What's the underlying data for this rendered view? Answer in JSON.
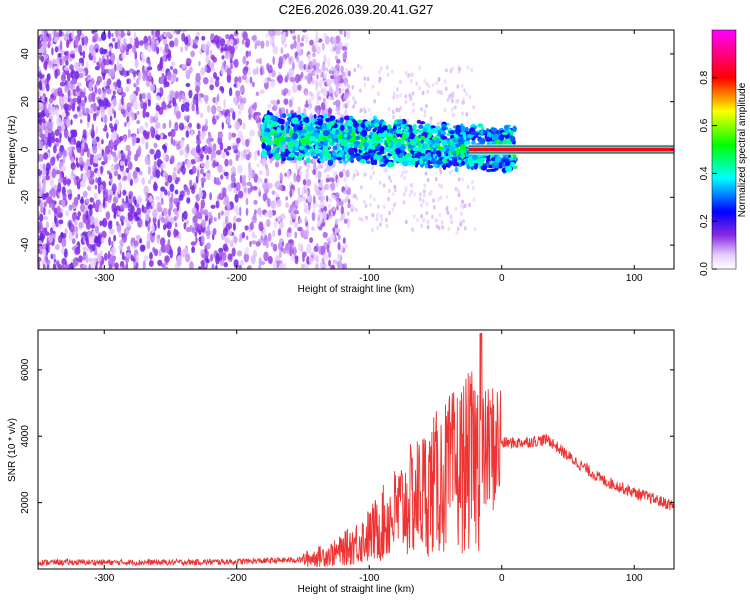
{
  "title": "C2E6.2026.039.20.41.G27",
  "chart_data": [
    {
      "type": "heatmap",
      "xlabel": "Height of straight line (km)",
      "ylabel": "Frequency (Hz)",
      "xlim": [
        -350,
        130
      ],
      "ylim": [
        -50,
        50
      ],
      "xticks": [
        -300,
        -200,
        -100,
        0,
        100
      ],
      "yticks": [
        -40,
        -20,
        0,
        20,
        40
      ],
      "colorbar": {
        "label": "Normalized spectral amplitude",
        "ticks": [
          "0.0",
          "0.2",
          "0.4",
          "0.6",
          "0.8"
        ],
        "range": [
          0,
          1
        ],
        "colors": [
          "#ffffff",
          "#e6ccff",
          "#8a2be2",
          "#0000ff",
          "#00ffff",
          "#00ff00",
          "#ffff00",
          "#ff0000",
          "#ff00ff"
        ]
      },
      "features": [
        {
          "name": "noise band",
          "x_range": [
            -350,
            -130
          ],
          "freq_range": [
            -50,
            50
          ],
          "amplitude": 0.15
        },
        {
          "name": "signal band",
          "x_range": [
            -180,
            10
          ],
          "freq_range": [
            -12,
            12
          ],
          "amplitude": 0.35
        },
        {
          "name": "carrier line",
          "x_range": [
            -25,
            130
          ],
          "freq": 0,
          "amplitude": 0.95
        }
      ]
    },
    {
      "type": "line",
      "xlabel": "Height of straight line (km)",
      "ylabel": "SNR (10 * v/v)",
      "xlim": [
        -350,
        130
      ],
      "ylim": [
        0,
        7200
      ],
      "xticks": [
        -300,
        -200,
        -100,
        0,
        100
      ],
      "yticks": [
        2000,
        4000,
        6000
      ],
      "color": "#ee3333",
      "x": [
        -350,
        -300,
        -250,
        -200,
        -175,
        -150,
        -125,
        -100,
        -80,
        -60,
        -45,
        -30,
        -20,
        -15,
        -10,
        -5,
        0,
        10,
        25,
        35,
        50,
        75,
        100,
        115,
        130
      ],
      "y": [
        200,
        200,
        200,
        220,
        250,
        280,
        480,
        1000,
        1700,
        2300,
        2700,
        3100,
        3300,
        3400,
        3600,
        3700,
        3800,
        3800,
        3850,
        3900,
        3400,
        2700,
        2300,
        2100,
        1900
      ]
    }
  ]
}
